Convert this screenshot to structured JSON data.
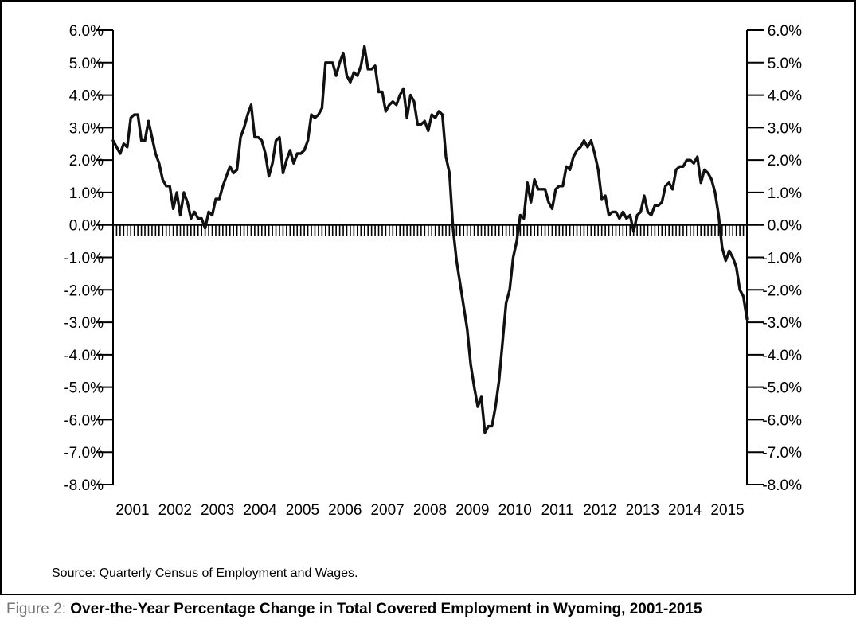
{
  "figure": {
    "label": "Figure 2:",
    "title": "Over-the-Year Percentage Change in Total Covered Employment in Wyoming, 2001-2015",
    "source": "Source: Quarterly Census of Employment and Wages."
  },
  "chart_data": {
    "type": "line",
    "title": "",
    "xlabel": "",
    "ylabel": "",
    "y_tick_labels": [
      "6.0%",
      "5.0%",
      "4.0%",
      "3.0%",
      "2.0%",
      "1.0%",
      "0.0%",
      "-1.0%",
      "-2.0%",
      "-3.0%",
      "-4.0%",
      "-5.0%",
      "-6.0%",
      "-7.0%",
      "-8.0%"
    ],
    "y_ticks": [
      6,
      5,
      4,
      3,
      2,
      1,
      0,
      -1,
      -2,
      -3,
      -4,
      -5,
      -6,
      -7,
      -8
    ],
    "ylim": [
      -8,
      6
    ],
    "x_tick_labels": [
      "2001",
      "2002",
      "2003",
      "2004",
      "2005",
      "2006",
      "2007",
      "2008",
      "2009",
      "2010",
      "2011",
      "2012",
      "2013",
      "2014",
      "2015"
    ],
    "dual_y_axis": true,
    "grid": false,
    "legend": "none",
    "line_color": "#111111",
    "series": [
      {
        "frequency": "monthly",
        "start": "2001-01",
        "values": [
          2.6,
          2.4,
          2.2,
          2.5,
          2.4,
          3.3,
          3.4,
          3.4,
          2.6,
          2.6,
          3.2,
          2.7,
          2.2,
          1.9,
          1.4,
          1.2,
          1.2,
          0.5,
          1.0,
          0.3,
          1.0,
          0.7,
          0.2,
          0.4,
          0.2,
          0.2,
          -0.1,
          0.4,
          0.3,
          0.8,
          0.8,
          1.2,
          1.5,
          1.8,
          1.6,
          1.7,
          2.7,
          3.0,
          3.4,
          3.7,
          2.7,
          2.7,
          2.6,
          2.2,
          1.5,
          1.9,
          2.6,
          2.7,
          1.6,
          2.0,
          2.3,
          1.9,
          2.2,
          2.2,
          2.3,
          2.6,
          3.4,
          3.3,
          3.4,
          3.6,
          5.0,
          5.0,
          5.0,
          4.6,
          5.0,
          5.3,
          4.6,
          4.4,
          4.7,
          4.6,
          4.9,
          5.5,
          4.8,
          4.8,
          4.9,
          4.1,
          4.1,
          3.5,
          3.7,
          3.8,
          3.7,
          4.0,
          4.2,
          3.3,
          4.0,
          3.8,
          3.1,
          3.1,
          3.2,
          2.9,
          3.4,
          3.3,
          3.5,
          3.4,
          2.1,
          1.6,
          -0.1,
          -1.1,
          -1.8,
          -2.5,
          -3.2,
          -4.3,
          -5.0,
          -5.6,
          -5.3,
          -6.4,
          -6.2,
          -6.2,
          -5.6,
          -4.8,
          -3.6,
          -2.4,
          -2.0,
          -1.0,
          -0.5,
          0.3,
          0.2,
          1.3,
          0.7,
          1.4,
          1.1,
          1.1,
          1.1,
          0.7,
          0.5,
          1.1,
          1.2,
          1.2,
          1.8,
          1.7,
          2.1,
          2.3,
          2.4,
          2.6,
          2.4,
          2.6,
          2.2,
          1.7,
          0.8,
          0.9,
          0.3,
          0.4,
          0.4,
          0.2,
          0.4,
          0.2,
          0.3,
          -0.2,
          0.3,
          0.4,
          0.9,
          0.4,
          0.3,
          0.6,
          0.6,
          0.7,
          1.2,
          1.3,
          1.1,
          1.7,
          1.8,
          1.8,
          2.0,
          2.0,
          1.9,
          2.1,
          1.3,
          1.7,
          1.6,
          1.4,
          1.0,
          0.3,
          -0.7,
          -1.1,
          -0.8,
          -1.0,
          -1.3,
          -2.0,
          -2.2,
          -2.9
        ]
      }
    ]
  }
}
